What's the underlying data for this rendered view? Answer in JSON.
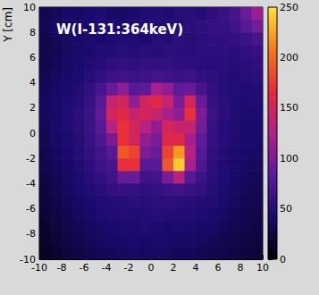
{
  "chart_data": {
    "type": "heatmap",
    "title": "W(I-131:364keV)",
    "ylabel": "Y [cm]",
    "x": [
      -9.5,
      -8.5,
      -7.5,
      -6.5,
      -5.5,
      -4.5,
      -3.5,
      -2.5,
      -1.5,
      -0.5,
      0.5,
      1.5,
      2.5,
      3.5,
      4.5,
      5.5,
      6.5,
      7.5,
      8.5,
      9.5
    ],
    "y": [
      9.5,
      8.5,
      7.5,
      6.5,
      5.5,
      4.5,
      3.5,
      2.5,
      1.5,
      0.5,
      -0.5,
      -1.5,
      -2.5,
      -3.5,
      -4.5,
      -5.5,
      -6.5,
      -7.5,
      -8.5,
      -9.5
    ],
    "values": [
      [
        30,
        35,
        40,
        38,
        42,
        45,
        40,
        38,
        42,
        45,
        48,
        45,
        50,
        52,
        48,
        55,
        60,
        70,
        90,
        115
      ],
      [
        32,
        36,
        40,
        42,
        40,
        44,
        46,
        42,
        44,
        48,
        46,
        50,
        48,
        52,
        55,
        58,
        60,
        65,
        80,
        95
      ],
      [
        28,
        34,
        38,
        40,
        44,
        42,
        45,
        48,
        46,
        44,
        50,
        48,
        52,
        50,
        54,
        56,
        55,
        58,
        62,
        70
      ],
      [
        30,
        32,
        36,
        40,
        42,
        46,
        48,
        50,
        48,
        52,
        50,
        54,
        52,
        50,
        52,
        54,
        55,
        52,
        56,
        60
      ],
      [
        30,
        34,
        38,
        42,
        46,
        50,
        54,
        56,
        55,
        58,
        56,
        58,
        55,
        54,
        52,
        50,
        52,
        50,
        52,
        55
      ],
      [
        32,
        36,
        40,
        44,
        50,
        56,
        62,
        66,
        62,
        64,
        68,
        66,
        62,
        64,
        58,
        54,
        50,
        48,
        50,
        52
      ],
      [
        34,
        38,
        42,
        48,
        56,
        70,
        90,
        110,
        80,
        85,
        120,
        110,
        85,
        90,
        70,
        56,
        50,
        48,
        46,
        48
      ],
      [
        35,
        40,
        45,
        50,
        60,
        80,
        140,
        150,
        110,
        150,
        160,
        140,
        100,
        150,
        90,
        60,
        52,
        48,
        45,
        46
      ],
      [
        36,
        40,
        46,
        52,
        62,
        85,
        150,
        160,
        140,
        150,
        140,
        120,
        110,
        170,
        100,
        62,
        52,
        46,
        44,
        44
      ],
      [
        34,
        40,
        45,
        52,
        62,
        80,
        130,
        170,
        150,
        130,
        110,
        150,
        140,
        140,
        95,
        60,
        50,
        46,
        42,
        42
      ],
      [
        32,
        38,
        44,
        50,
        60,
        75,
        100,
        170,
        150,
        110,
        100,
        160,
        160,
        120,
        85,
        58,
        50,
        45,
        42,
        40
      ],
      [
        30,
        36,
        42,
        48,
        56,
        68,
        80,
        190,
        180,
        100,
        90,
        180,
        220,
        130,
        80,
        56,
        48,
        44,
        40,
        38
      ],
      [
        28,
        34,
        40,
        46,
        54,
        64,
        70,
        170,
        170,
        80,
        80,
        190,
        240,
        120,
        75,
        54,
        46,
        42,
        38,
        36
      ],
      [
        26,
        32,
        38,
        44,
        50,
        58,
        66,
        90,
        90,
        66,
        68,
        100,
        130,
        80,
        64,
        52,
        46,
        40,
        36,
        34
      ],
      [
        24,
        30,
        36,
        42,
        46,
        52,
        56,
        60,
        58,
        56,
        58,
        62,
        66,
        60,
        56,
        50,
        44,
        38,
        34,
        32
      ],
      [
        22,
        28,
        34,
        38,
        42,
        46,
        48,
        50,
        52,
        50,
        52,
        54,
        52,
        50,
        48,
        46,
        42,
        36,
        32,
        30
      ],
      [
        20,
        26,
        30,
        36,
        40,
        44,
        46,
        48,
        46,
        48,
        50,
        48,
        46,
        46,
        44,
        42,
        38,
        34,
        30,
        28
      ],
      [
        18,
        24,
        28,
        32,
        36,
        40,
        42,
        44,
        44,
        46,
        44,
        42,
        44,
        42,
        40,
        38,
        34,
        30,
        28,
        26
      ],
      [
        15,
        20,
        26,
        30,
        34,
        36,
        38,
        40,
        42,
        40,
        42,
        40,
        38,
        38,
        36,
        34,
        30,
        28,
        26,
        24
      ],
      [
        12,
        18,
        22,
        26,
        30,
        32,
        34,
        36,
        38,
        36,
        38,
        36,
        34,
        34,
        32,
        30,
        28,
        26,
        24,
        22
      ]
    ],
    "xlim": [
      -10,
      10
    ],
    "xticks": [
      -10,
      -8,
      -6,
      -4,
      -2,
      0,
      2,
      4,
      6,
      8,
      10
    ],
    "ylim": [
      -10,
      10
    ],
    "yticks": [
      -10,
      -8,
      -6,
      -4,
      -2,
      0,
      2,
      4,
      6,
      8,
      10
    ],
    "colorbar": {
      "range": [
        0,
        250
      ],
      "ticks": [
        0,
        50,
        100,
        150,
        200,
        250
      ]
    }
  }
}
